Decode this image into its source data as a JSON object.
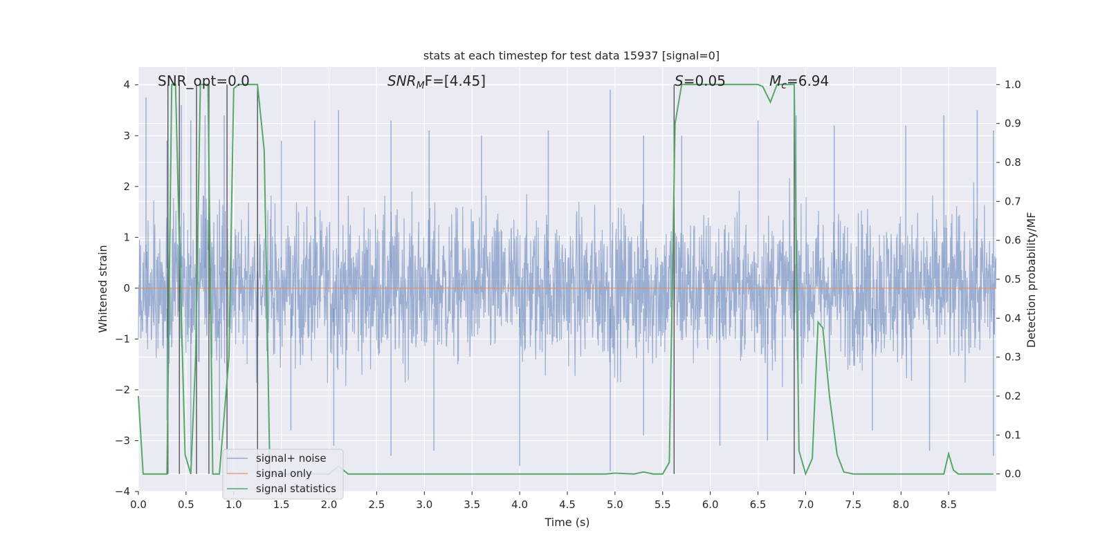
{
  "chart_data": {
    "type": "line",
    "title": "stats at each timestep for test data 15937 [signal=0]",
    "xlabel": "Time (s)",
    "ylabel": "Whitened strain",
    "y2label": "Detection probability/MF",
    "xlim": [
      0.0,
      9.0
    ],
    "ylim": [
      -4.0,
      4.35
    ],
    "y2lim": [
      -0.045,
      1.045
    ],
    "xticks": [
      0.0,
      0.5,
      1.0,
      1.5,
      2.0,
      2.5,
      3.0,
      3.5,
      4.0,
      4.5,
      5.0,
      5.5,
      6.0,
      6.5,
      7.0,
      7.5,
      8.0,
      8.5
    ],
    "xtick_labels": [
      "0.0",
      "0.5",
      "1.0",
      "1.5",
      "2.0",
      "2.5",
      "3.0",
      "3.5",
      "4.0",
      "4.5",
      "5.0",
      "5.5",
      "6.0",
      "6.5",
      "7.0",
      "7.5",
      "8.0",
      "8.5"
    ],
    "yticks": [
      -4,
      -3,
      -2,
      -1,
      0,
      1,
      2,
      3,
      4
    ],
    "ytick_labels": [
      "−4",
      "−3",
      "−2",
      "−1",
      "0",
      "1",
      "2",
      "3",
      "4"
    ],
    "y2ticks": [
      0.0,
      0.1,
      0.2,
      0.3,
      0.4,
      0.5,
      0.6,
      0.7,
      0.8,
      0.9,
      1.0
    ],
    "y2tick_labels": [
      "0.0",
      "0.1",
      "0.2",
      "0.3",
      "0.4",
      "0.5",
      "0.6",
      "0.7",
      "0.8",
      "0.9",
      "1.0"
    ],
    "annotations": {
      "snr_opt": "SNR_opt=0.0",
      "snr_mf_main": "SNR",
      "snr_mf_sub": "M",
      "snr_mf_rest": "F=[4.45]",
      "s_main": "S",
      "s_rest": "=0.05",
      "mc_main": "M",
      "mc_sub": "c",
      "mc_rest": "=6.94"
    },
    "legend": {
      "position": "lower-left",
      "entries": [
        "signal+ noise",
        "signal only",
        "signal statistics"
      ]
    },
    "series": [
      {
        "name": "signal+ noise",
        "color": "#4c72b0",
        "axis": "left",
        "kind": "noise",
        "description_range": [
          -3.6,
          3.9
        ],
        "peaks": [
          [
            0.08,
            3.75
          ],
          [
            0.3,
            2.9
          ],
          [
            0.45,
            3.6
          ],
          [
            0.55,
            3.3
          ],
          [
            0.7,
            3.4
          ],
          [
            0.9,
            3.4
          ],
          [
            1.25,
            2.9
          ],
          [
            1.5,
            2.9
          ],
          [
            1.85,
            3.3
          ],
          [
            2.1,
            3.5
          ],
          [
            2.65,
            3.3
          ],
          [
            3.05,
            3.1
          ],
          [
            3.6,
            3.0
          ],
          [
            4.3,
            3.1
          ],
          [
            4.95,
            3.9
          ],
          [
            5.3,
            3.0
          ],
          [
            5.7,
            3.0
          ],
          [
            6.5,
            3.3
          ],
          [
            6.9,
            3.4
          ],
          [
            7.3,
            3.2
          ],
          [
            8.05,
            3.2
          ],
          [
            8.45,
            3.4
          ],
          [
            8.8,
            3.5
          ],
          [
            8.97,
            3.1
          ]
        ],
        "troughs": [
          [
            0.3,
            -2.6
          ],
          [
            0.55,
            -3.4
          ],
          [
            0.85,
            -3.0
          ],
          [
            1.6,
            -2.8
          ],
          [
            2.05,
            -3.1
          ],
          [
            2.65,
            -3.3
          ],
          [
            3.1,
            -3.2
          ],
          [
            4.0,
            -3.5
          ],
          [
            4.95,
            -3.6
          ],
          [
            5.3,
            -2.9
          ],
          [
            6.1,
            -3.1
          ],
          [
            6.6,
            -3.0
          ],
          [
            7.7,
            -2.8
          ],
          [
            8.3,
            -3.2
          ],
          [
            8.97,
            -3.3
          ]
        ]
      },
      {
        "name": "signal only",
        "color": "#dd8452",
        "axis": "left",
        "x": [
          0.0,
          9.0
        ],
        "y": [
          0.0,
          0.0
        ]
      },
      {
        "name": "signal statistics",
        "color": "#55a868",
        "axis": "right",
        "x": [
          0.0,
          0.05,
          0.15,
          0.25,
          0.3,
          0.35,
          0.39,
          0.43,
          0.49,
          0.55,
          0.6,
          0.65,
          0.7,
          0.73,
          0.75,
          0.78,
          0.85,
          0.95,
          1.0,
          1.05,
          1.15,
          1.25,
          1.32,
          1.38,
          1.45,
          1.6,
          1.8,
          2.0,
          2.1,
          2.2,
          3.0,
          4.0,
          4.9,
          5.0,
          5.2,
          5.3,
          5.4,
          5.5,
          5.57,
          5.63,
          5.7,
          5.9,
          6.2,
          6.5,
          6.55,
          6.63,
          6.7,
          6.75,
          6.8,
          6.88,
          6.93,
          7.0,
          7.07,
          7.13,
          7.18,
          7.25,
          7.33,
          7.4,
          7.5,
          8.0,
          8.45,
          8.5,
          8.55,
          8.6,
          8.7,
          8.97
        ],
        "y": [
          0.2,
          0.0,
          0.0,
          0.0,
          0.0,
          1.0,
          1.0,
          0.6,
          0.05,
          0.0,
          0.3,
          1.0,
          1.0,
          1.0,
          0.6,
          0.0,
          0.0,
          0.3,
          0.99,
          1.0,
          1.0,
          1.0,
          0.83,
          0.0,
          0.0,
          0.0,
          0.0,
          0.0,
          0.02,
          0.0,
          0.0,
          0.0,
          0.0,
          0.002,
          0.0,
          0.005,
          0.0,
          0.0,
          0.03,
          0.9,
          1.0,
          1.0,
          1.0,
          1.0,
          0.995,
          0.955,
          1.0,
          1.0,
          1.0,
          1.0,
          0.06,
          0.0,
          0.04,
          0.39,
          0.375,
          0.2,
          0.05,
          0.005,
          0.0,
          0.0,
          0.0,
          0.052,
          0.01,
          0.0,
          0.0,
          0.0
        ]
      }
    ],
    "vertical_lines_x": [
      0.31,
      0.43,
      0.61,
      0.74,
      0.93,
      1.25,
      5.62,
      6.88
    ]
  }
}
